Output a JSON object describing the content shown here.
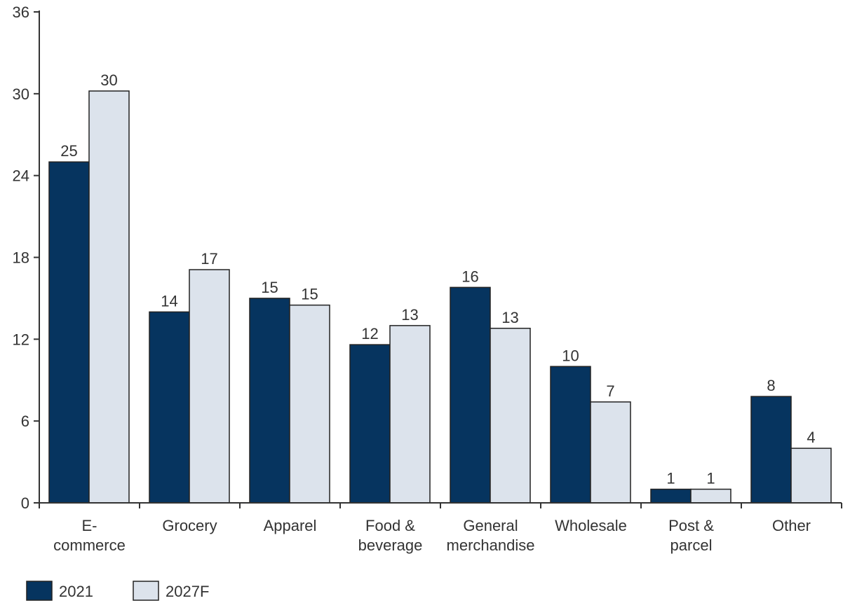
{
  "chart_data": {
    "type": "bar",
    "title": "",
    "xlabel": "",
    "ylabel": "",
    "categories": [
      [
        "E-",
        "commerce"
      ],
      [
        "Grocery"
      ],
      [
        "Apparel"
      ],
      [
        "Food &",
        "beverage"
      ],
      [
        "General",
        "merchandise"
      ],
      [
        "Wholesale"
      ],
      [
        "Post &",
        "parcel"
      ],
      [
        "Other"
      ]
    ],
    "ylim": [
      0,
      36
    ],
    "yticks": [
      0,
      6,
      12,
      18,
      24,
      30,
      36
    ],
    "grid": false,
    "legend_position": "bottom-left",
    "series": [
      {
        "name": "2021",
        "color": "#06345f",
        "values": [
          25,
          14,
          15,
          11.6,
          15.8,
          10,
          1,
          7.8
        ],
        "labels": [
          "25",
          "14",
          "15",
          "12",
          "16",
          "10",
          "1",
          "8"
        ]
      },
      {
        "name": "2027F",
        "color": "#dce3ec",
        "values": [
          30.2,
          17.1,
          14.5,
          13,
          12.8,
          7.4,
          1,
          4
        ],
        "labels": [
          "30",
          "17",
          "15",
          "13",
          "13",
          "7",
          "1",
          "4"
        ]
      }
    ]
  }
}
